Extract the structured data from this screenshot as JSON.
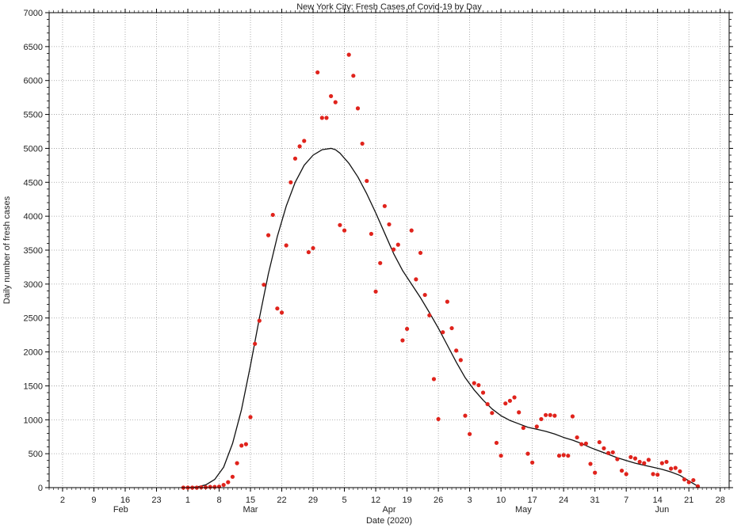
{
  "chart_data": {
    "type": "scatter",
    "title": "New York City: Fresh Cases of Covid-19 by Day",
    "xlabel": "Date (2020)",
    "ylabel": "Daily number of fresh cases",
    "ylim": [
      0,
      7000
    ],
    "yticks": [
      0,
      500,
      1000,
      1500,
      2000,
      2500,
      3000,
      3500,
      4000,
      4500,
      5000,
      5500,
      6000,
      6500,
      7000
    ],
    "xlim": [
      "2020-01-30",
      "2020-06-30"
    ],
    "xticks": [
      {
        "date": "2020-02-02",
        "label": "2"
      },
      {
        "date": "2020-02-09",
        "label": "9"
      },
      {
        "date": "2020-02-16",
        "label": "16"
      },
      {
        "date": "2020-02-23",
        "label": "23"
      },
      {
        "date": "2020-03-01",
        "label": "1"
      },
      {
        "date": "2020-03-08",
        "label": "8"
      },
      {
        "date": "2020-03-15",
        "label": "15"
      },
      {
        "date": "2020-03-22",
        "label": "22"
      },
      {
        "date": "2020-03-29",
        "label": "29"
      },
      {
        "date": "2020-04-05",
        "label": "5"
      },
      {
        "date": "2020-04-12",
        "label": "12"
      },
      {
        "date": "2020-04-19",
        "label": "19"
      },
      {
        "date": "2020-04-26",
        "label": "26"
      },
      {
        "date": "2020-05-03",
        "label": "3"
      },
      {
        "date": "2020-05-10",
        "label": "10"
      },
      {
        "date": "2020-05-17",
        "label": "17"
      },
      {
        "date": "2020-05-24",
        "label": "24"
      },
      {
        "date": "2020-05-31",
        "label": "31"
      },
      {
        "date": "2020-06-07",
        "label": "7"
      },
      {
        "date": "2020-06-14",
        "label": "14"
      },
      {
        "date": "2020-06-21",
        "label": "21"
      },
      {
        "date": "2020-06-28",
        "label": "28"
      }
    ],
    "months": [
      {
        "date": "2020-02-15",
        "label": "Feb"
      },
      {
        "date": "2020-03-15",
        "label": "Mar"
      },
      {
        "date": "2020-04-15",
        "label": "Apr"
      },
      {
        "date": "2020-05-15",
        "label": "May"
      },
      {
        "date": "2020-06-15",
        "label": "Jun"
      }
    ],
    "grid": true,
    "series": [
      {
        "color": "#e0231c",
        "style": "markers",
        "x": [
          "2020-02-29",
          "2020-03-01",
          "2020-03-02",
          "2020-03-03",
          "2020-03-04",
          "2020-03-05",
          "2020-03-06",
          "2020-03-07",
          "2020-03-08",
          "2020-03-09",
          "2020-03-10",
          "2020-03-11",
          "2020-03-12",
          "2020-03-13",
          "2020-03-14",
          "2020-03-15",
          "2020-03-16",
          "2020-03-17",
          "2020-03-18",
          "2020-03-19",
          "2020-03-20",
          "2020-03-21",
          "2020-03-22",
          "2020-03-23",
          "2020-03-24",
          "2020-03-25",
          "2020-03-26",
          "2020-03-27",
          "2020-03-28",
          "2020-03-29",
          "2020-03-30",
          "2020-03-31",
          "2020-04-01",
          "2020-04-02",
          "2020-04-03",
          "2020-04-04",
          "2020-04-05",
          "2020-04-06",
          "2020-04-07",
          "2020-04-08",
          "2020-04-09",
          "2020-04-10",
          "2020-04-11",
          "2020-04-12",
          "2020-04-13",
          "2020-04-14",
          "2020-04-15",
          "2020-04-16",
          "2020-04-17",
          "2020-04-18",
          "2020-04-19",
          "2020-04-20",
          "2020-04-21",
          "2020-04-22",
          "2020-04-23",
          "2020-04-24",
          "2020-04-25",
          "2020-04-26",
          "2020-04-27",
          "2020-04-28",
          "2020-04-29",
          "2020-04-30",
          "2020-05-01",
          "2020-05-02",
          "2020-05-03",
          "2020-05-04",
          "2020-05-05",
          "2020-05-06",
          "2020-05-07",
          "2020-05-08",
          "2020-05-09",
          "2020-05-10",
          "2020-05-11",
          "2020-05-12",
          "2020-05-13",
          "2020-05-14",
          "2020-05-15",
          "2020-05-16",
          "2020-05-17",
          "2020-05-18",
          "2020-05-19",
          "2020-05-20",
          "2020-05-21",
          "2020-05-22",
          "2020-05-23",
          "2020-05-24",
          "2020-05-25",
          "2020-05-26",
          "2020-05-27",
          "2020-05-28",
          "2020-05-29",
          "2020-05-30",
          "2020-05-31",
          "2020-06-01",
          "2020-06-02",
          "2020-06-03",
          "2020-06-04",
          "2020-06-05",
          "2020-06-06",
          "2020-06-07",
          "2020-06-08",
          "2020-06-09",
          "2020-06-10",
          "2020-06-11",
          "2020-06-12",
          "2020-06-13",
          "2020-06-14",
          "2020-06-15",
          "2020-06-16",
          "2020-06-17",
          "2020-06-18",
          "2020-06-19",
          "2020-06-20",
          "2020-06-21",
          "2020-06-22",
          "2020-06-23"
        ],
        "y": [
          0,
          0,
          0,
          0,
          5,
          5,
          10,
          10,
          15,
          40,
          80,
          160,
          360,
          620,
          640,
          1040,
          2120,
          2460,
          2990,
          3720,
          4020,
          2640,
          2580,
          3570,
          4500,
          4850,
          5030,
          5110,
          3470,
          3530,
          6120,
          5450,
          5450,
          5770,
          5680,
          3870,
          3790,
          6380,
          6070,
          5590,
          5070,
          4520,
          3740,
          2890,
          3310,
          4150,
          3880,
          3510,
          3580,
          2170,
          2340,
          3790,
          3070,
          3460,
          2840,
          2540,
          1600,
          1010,
          2290,
          2740,
          2350,
          2020,
          1880,
          1060,
          790,
          1540,
          1510,
          1400,
          1230,
          1100,
          660,
          470,
          1240,
          1280,
          1330,
          1110,
          880,
          500,
          370,
          900,
          1010,
          1070,
          1070,
          1060,
          470,
          480,
          470,
          1050,
          740,
          640,
          650,
          350,
          220,
          670,
          580,
          510,
          520,
          420,
          250,
          200,
          450,
          430,
          380,
          360,
          410,
          200,
          190,
          360,
          380,
          280,
          290,
          240,
          120,
          80,
          110,
          20
        ]
      },
      {
        "color": "#111111",
        "style": "line",
        "x": [
          "2020-03-01",
          "2020-03-03",
          "2020-03-05",
          "2020-03-07",
          "2020-03-09",
          "2020-03-11",
          "2020-03-13",
          "2020-03-15",
          "2020-03-17",
          "2020-03-19",
          "2020-03-21",
          "2020-03-23",
          "2020-03-25",
          "2020-03-27",
          "2020-03-29",
          "2020-03-31",
          "2020-04-02",
          "2020-04-03",
          "2020-04-04",
          "2020-04-06",
          "2020-04-08",
          "2020-04-10",
          "2020-04-12",
          "2020-04-14",
          "2020-04-16",
          "2020-04-18",
          "2020-04-20",
          "2020-04-22",
          "2020-04-24",
          "2020-04-26",
          "2020-04-28",
          "2020-04-30",
          "2020-05-02",
          "2020-05-04",
          "2020-05-06",
          "2020-05-08",
          "2020-05-10",
          "2020-05-12",
          "2020-05-14",
          "2020-05-16",
          "2020-05-18",
          "2020-05-20",
          "2020-05-22",
          "2020-05-24",
          "2020-05-26",
          "2020-05-28",
          "2020-05-30",
          "2020-06-01",
          "2020-06-03",
          "2020-06-05",
          "2020-06-07",
          "2020-06-09",
          "2020-06-11",
          "2020-06-13",
          "2020-06-15",
          "2020-06-17",
          "2020-06-19",
          "2020-06-21",
          "2020-06-23"
        ],
        "y": [
          0,
          10,
          40,
          120,
          300,
          650,
          1150,
          1800,
          2500,
          3150,
          3700,
          4150,
          4500,
          4750,
          4900,
          4980,
          5000,
          4980,
          4930,
          4780,
          4580,
          4330,
          4050,
          3750,
          3450,
          3200,
          3000,
          2800,
          2580,
          2350,
          2100,
          1850,
          1620,
          1440,
          1290,
          1160,
          1060,
          990,
          940,
          890,
          860,
          830,
          790,
          740,
          700,
          650,
          590,
          540,
          490,
          440,
          400,
          360,
          330,
          300,
          270,
          230,
          180,
          100,
          20
        ]
      }
    ]
  }
}
